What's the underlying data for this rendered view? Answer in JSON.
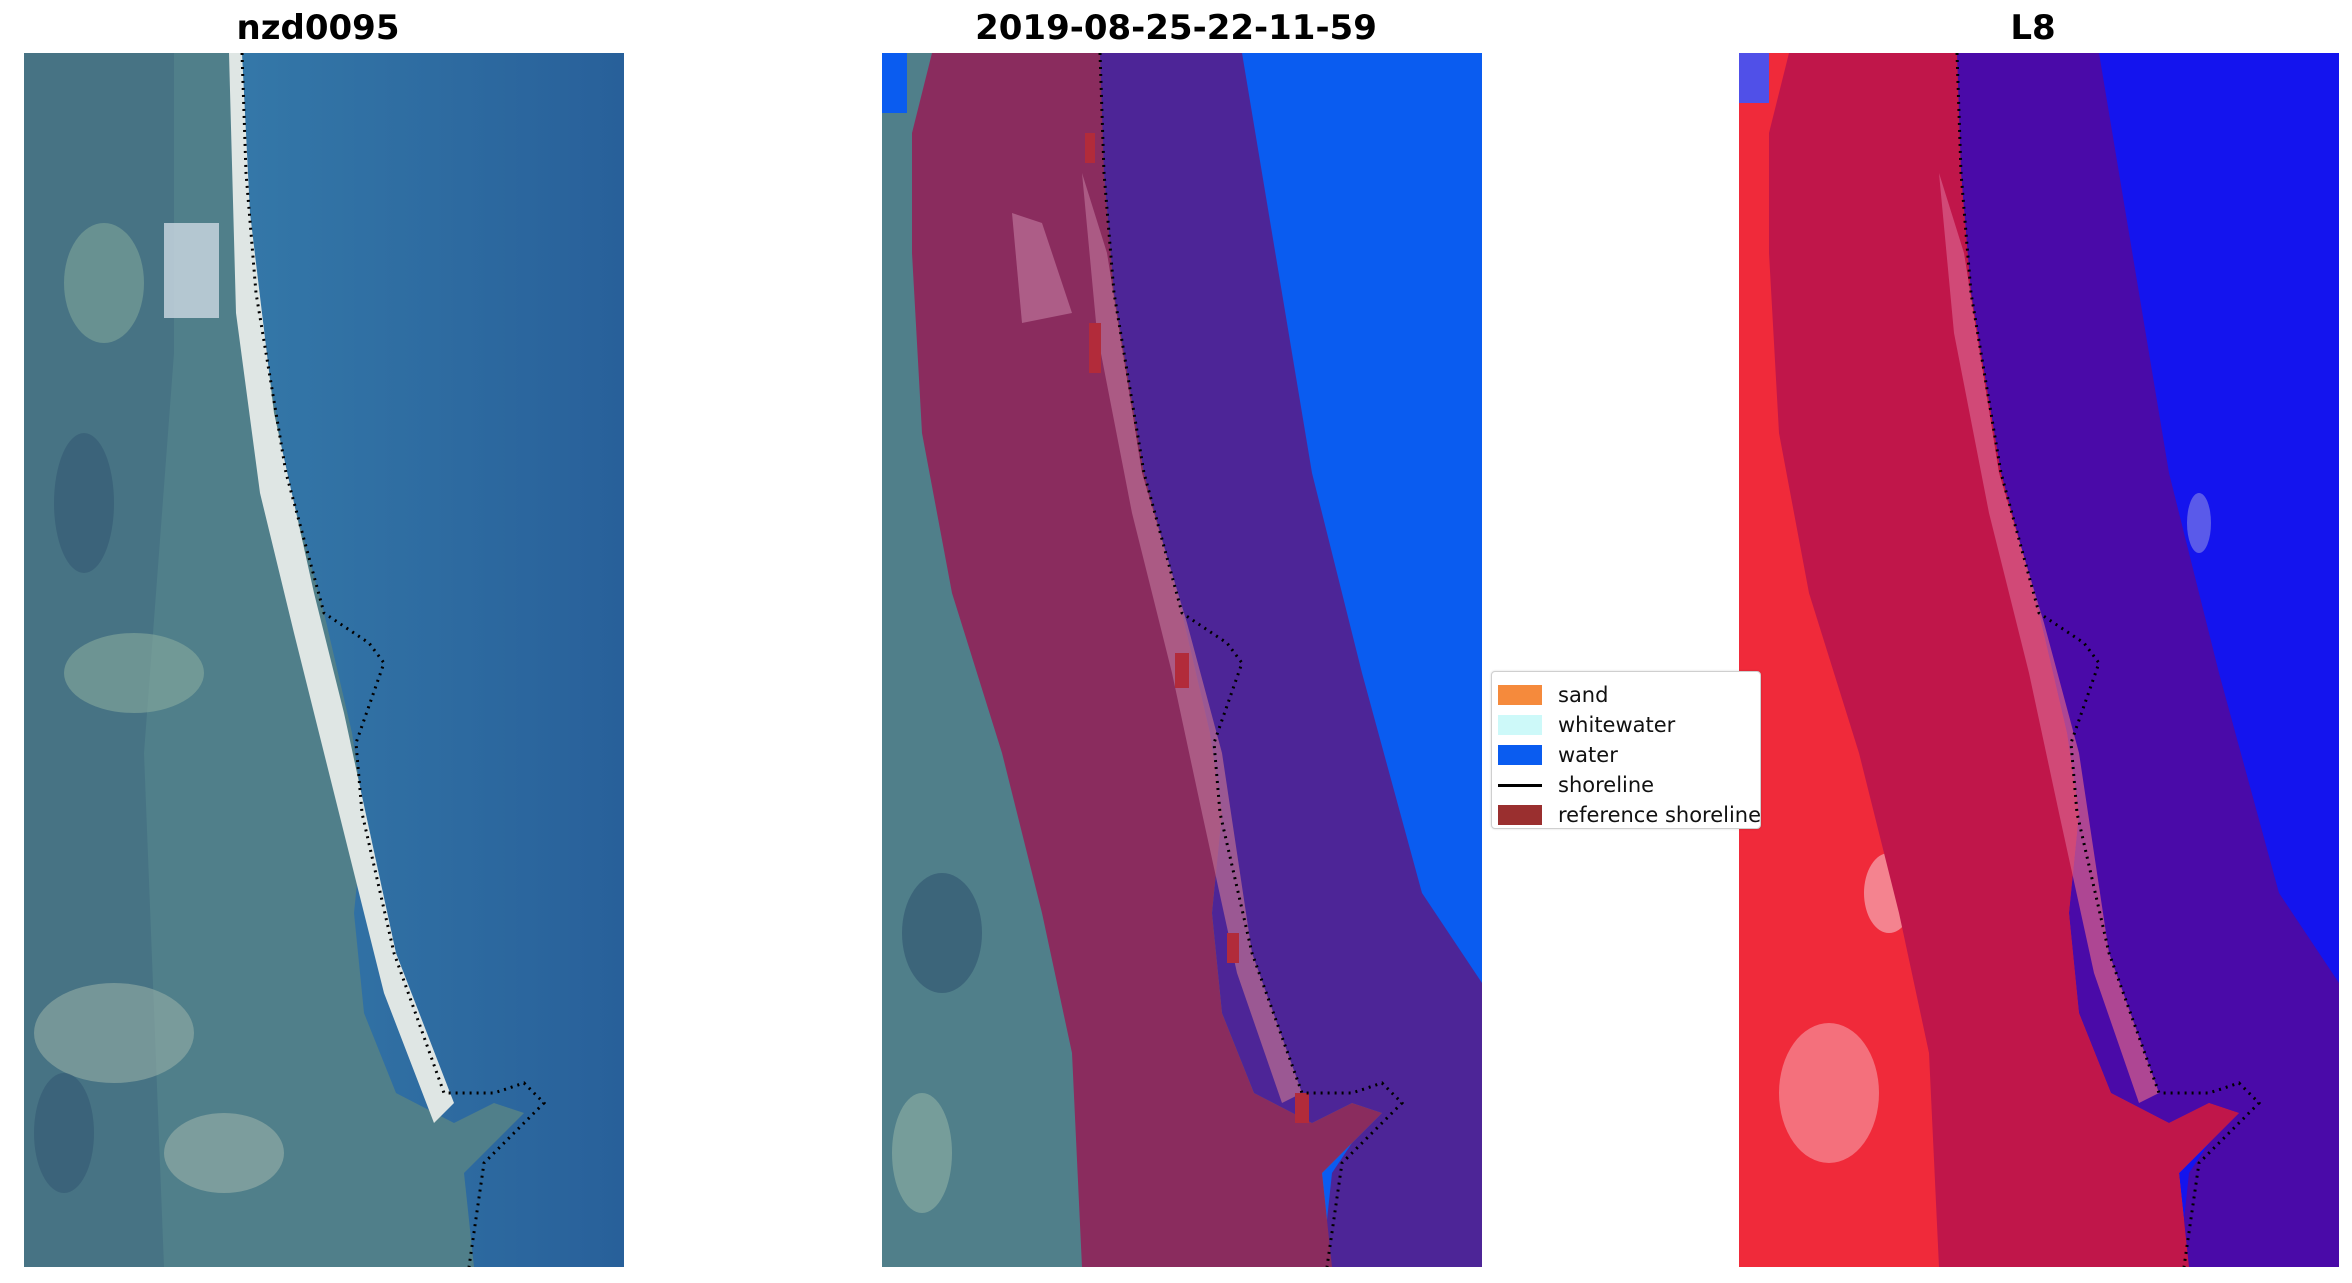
{
  "panels": [
    {
      "title": "nzd0095",
      "image": "satellite-rgb"
    },
    {
      "title": "2019-08-25-22-11-59",
      "image": "classified-overlay"
    },
    {
      "title": "L8",
      "image": "false-color-mndwi"
    }
  ],
  "legend": {
    "items": [
      {
        "label": "sand",
        "color": "#f58a3c",
        "kind": "patch"
      },
      {
        "label": "whitewater",
        "color": "#cdf9f9",
        "kind": "patch"
      },
      {
        "label": "water",
        "color": "#0a5cf0",
        "kind": "patch"
      },
      {
        "label": "shoreline",
        "color": "#000000",
        "kind": "line"
      },
      {
        "label": "reference shoreline",
        "color": "#9a2f2f",
        "kind": "patch"
      }
    ]
  },
  "colors": {
    "ocean": "#2c6fa6",
    "land": "#4f7d88",
    "overlay_land": "#8a2c5e",
    "overlay_sea": "#4d2597",
    "water": "#0a5cf0",
    "l8_land": "#f02a3a",
    "l8_buffer": "#c0164a",
    "l8_sea": "#3a0aa8",
    "l8_water": "#1414ee"
  }
}
